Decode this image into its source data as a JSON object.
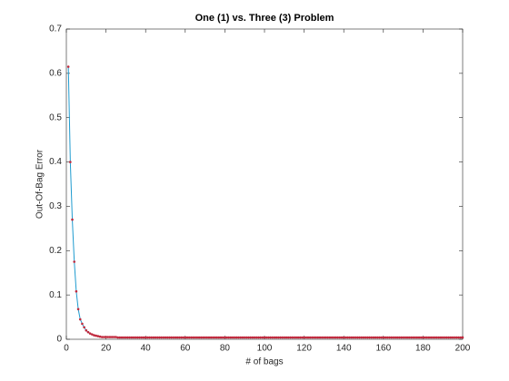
{
  "chart_data": {
    "type": "line",
    "title": "One (1) vs. Three (3) Problem",
    "xlabel": "# of bags",
    "ylabel": "Out-Of-Bag Error",
    "x": [
      1,
      2,
      3,
      4,
      5,
      6,
      7,
      8,
      9,
      10,
      11,
      12,
      13,
      14,
      15,
      16,
      17,
      18,
      19,
      20,
      21,
      22,
      23,
      24,
      25,
      26,
      27,
      28,
      29,
      30,
      31,
      32,
      33,
      34,
      35,
      36,
      37,
      38,
      39,
      40,
      41,
      42,
      43,
      44,
      45,
      46,
      47,
      48,
      49,
      50,
      51,
      52,
      53,
      54,
      55,
      56,
      57,
      58,
      59,
      60,
      61,
      62,
      63,
      64,
      65,
      66,
      67,
      68,
      69,
      70,
      71,
      72,
      73,
      74,
      75,
      76,
      77,
      78,
      79,
      80,
      81,
      82,
      83,
      84,
      85,
      86,
      87,
      88,
      89,
      90,
      91,
      92,
      93,
      94,
      95,
      96,
      97,
      98,
      99,
      100,
      101,
      102,
      103,
      104,
      105,
      106,
      107,
      108,
      109,
      110,
      111,
      112,
      113,
      114,
      115,
      116,
      117,
      118,
      119,
      120,
      121,
      122,
      123,
      124,
      125,
      126,
      127,
      128,
      129,
      130,
      131,
      132,
      133,
      134,
      135,
      136,
      137,
      138,
      139,
      140,
      141,
      142,
      143,
      144,
      145,
      146,
      147,
      148,
      149,
      150,
      151,
      152,
      153,
      154,
      155,
      156,
      157,
      158,
      159,
      160,
      161,
      162,
      163,
      164,
      165,
      166,
      167,
      168,
      169,
      170,
      171,
      172,
      173,
      174,
      175,
      176,
      177,
      178,
      179,
      180,
      181,
      182,
      183,
      184,
      185,
      186,
      187,
      188,
      189,
      190,
      191,
      192,
      193,
      194,
      195,
      196,
      197,
      198,
      199,
      200
    ],
    "series": [
      {
        "color": "#1f9bcf",
        "marker_color": "#c0283c",
        "values": [
          0.615,
          0.4,
          0.27,
          0.175,
          0.108,
          0.068,
          0.045,
          0.035,
          0.027,
          0.02,
          0.016,
          0.013,
          0.011,
          0.009,
          0.008,
          0.007,
          0.006,
          0.005,
          0.005,
          0.005,
          0.005,
          0.005,
          0.005,
          0.005,
          0.005,
          0.004,
          0.004,
          0.004,
          0.004,
          0.004,
          0.004,
          0.004,
          0.004,
          0.004,
          0.004,
          0.004,
          0.004,
          0.004,
          0.004,
          0.004,
          0.004,
          0.004,
          0.004,
          0.004,
          0.004,
          0.004,
          0.004,
          0.004,
          0.004,
          0.004,
          0.004,
          0.004,
          0.004,
          0.004,
          0.004,
          0.004,
          0.004,
          0.004,
          0.004,
          0.004,
          0.004,
          0.004,
          0.004,
          0.004,
          0.004,
          0.004,
          0.004,
          0.004,
          0.004,
          0.004,
          0.004,
          0.004,
          0.004,
          0.004,
          0.004,
          0.004,
          0.004,
          0.004,
          0.004,
          0.004,
          0.004,
          0.004,
          0.004,
          0.004,
          0.004,
          0.004,
          0.004,
          0.004,
          0.004,
          0.004,
          0.004,
          0.004,
          0.004,
          0.004,
          0.004,
          0.004,
          0.004,
          0.004,
          0.004,
          0.004,
          0.004,
          0.004,
          0.004,
          0.004,
          0.004,
          0.004,
          0.004,
          0.004,
          0.004,
          0.004,
          0.004,
          0.004,
          0.004,
          0.004,
          0.004,
          0.004,
          0.004,
          0.004,
          0.004,
          0.004,
          0.004,
          0.004,
          0.004,
          0.004,
          0.004,
          0.004,
          0.004,
          0.004,
          0.004,
          0.004,
          0.004,
          0.004,
          0.004,
          0.004,
          0.004,
          0.004,
          0.004,
          0.004,
          0.004,
          0.004,
          0.004,
          0.004,
          0.004,
          0.004,
          0.004,
          0.004,
          0.004,
          0.004,
          0.004,
          0.004,
          0.004,
          0.004,
          0.004,
          0.004,
          0.004,
          0.004,
          0.004,
          0.004,
          0.004,
          0.004,
          0.004,
          0.004,
          0.004,
          0.004,
          0.004,
          0.004,
          0.004,
          0.004,
          0.004,
          0.004,
          0.004,
          0.004,
          0.004,
          0.004,
          0.004,
          0.004,
          0.004,
          0.004,
          0.004,
          0.004,
          0.004,
          0.004,
          0.004,
          0.004,
          0.004,
          0.004,
          0.004,
          0.004,
          0.004,
          0.004,
          0.004,
          0.004,
          0.004,
          0.004,
          0.004,
          0.004,
          0.004,
          0.004,
          0.004,
          0.004
        ]
      }
    ],
    "xlim": [
      0,
      200
    ],
    "xticks": [
      0,
      20,
      40,
      60,
      80,
      100,
      120,
      140,
      160,
      180,
      200
    ],
    "ylim": [
      0,
      0.7
    ],
    "yticks": [
      0,
      0.1,
      0.2,
      0.3,
      0.4,
      0.5,
      0.6,
      0.7
    ]
  }
}
